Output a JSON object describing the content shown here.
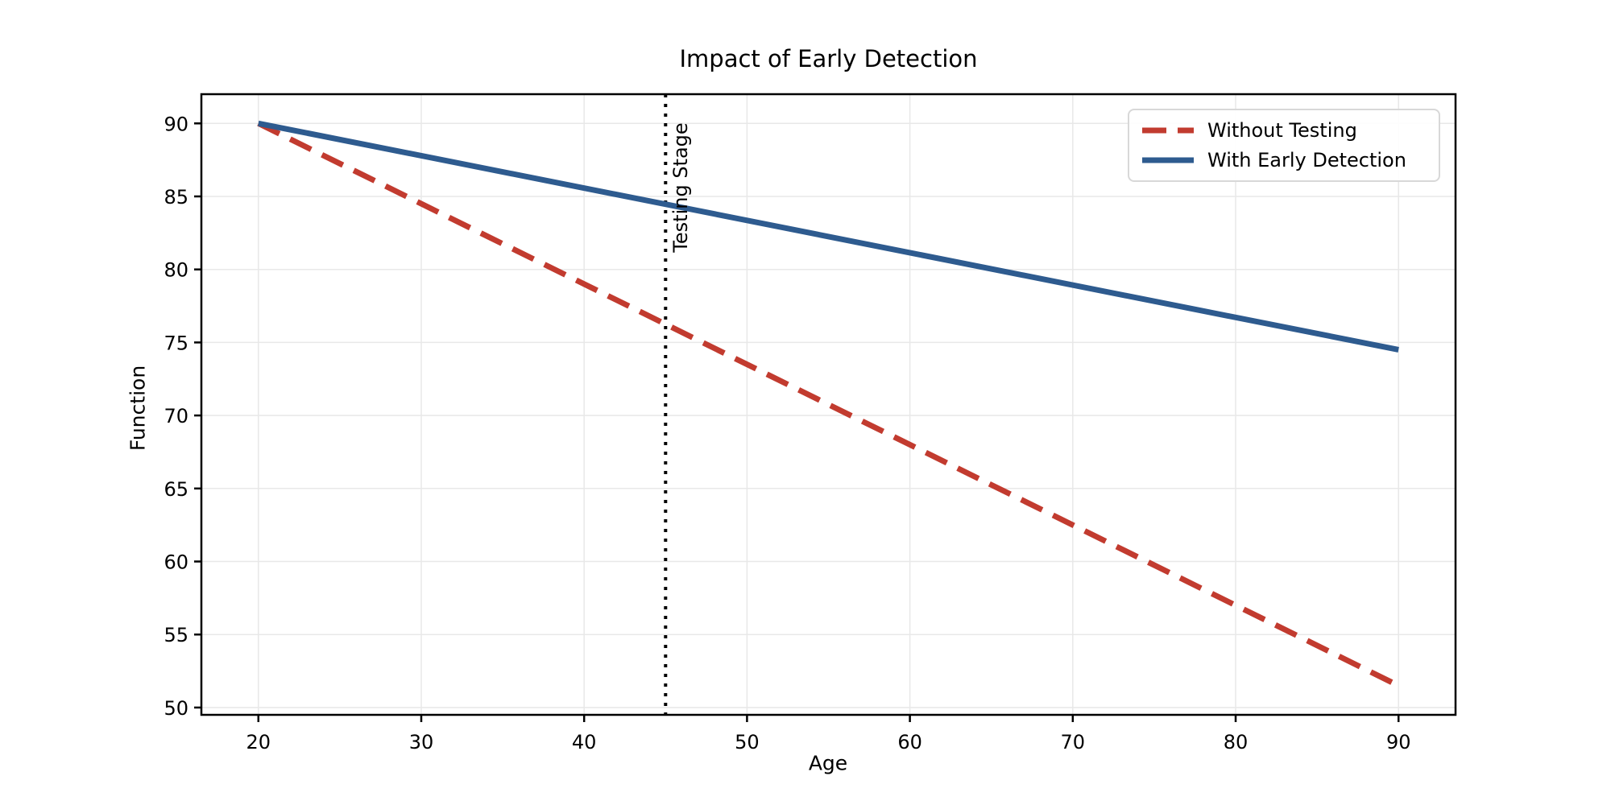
{
  "chart_data": {
    "type": "line",
    "title": "Impact of Early Detection",
    "xlabel": "Age",
    "ylabel": "Function",
    "xlim": [
      16.5,
      93.5
    ],
    "ylim": [
      49.5,
      92
    ],
    "x_ticks": [
      20,
      30,
      40,
      50,
      60,
      70,
      80,
      90
    ],
    "y_ticks": [
      50,
      55,
      60,
      65,
      70,
      75,
      80,
      85,
      90
    ],
    "grid": true,
    "grid_color": "#e8e8e8",
    "background": "#ffffff",
    "series": [
      {
        "name": "Without Testing",
        "x": [
          20,
          90
        ],
        "values": [
          90,
          51.5
        ],
        "color": "#c23b2f",
        "style": "dashed",
        "width": 7
      },
      {
        "name": "With Early Detection",
        "x": [
          20,
          90
        ],
        "values": [
          90,
          74.5
        ],
        "color": "#2e5b8f",
        "style": "solid",
        "width": 7
      }
    ],
    "annotation": {
      "vline_x": 45,
      "label": "Testing Stage",
      "style": "dotted",
      "color": "#000000"
    },
    "legend": {
      "position": "upper right"
    }
  }
}
